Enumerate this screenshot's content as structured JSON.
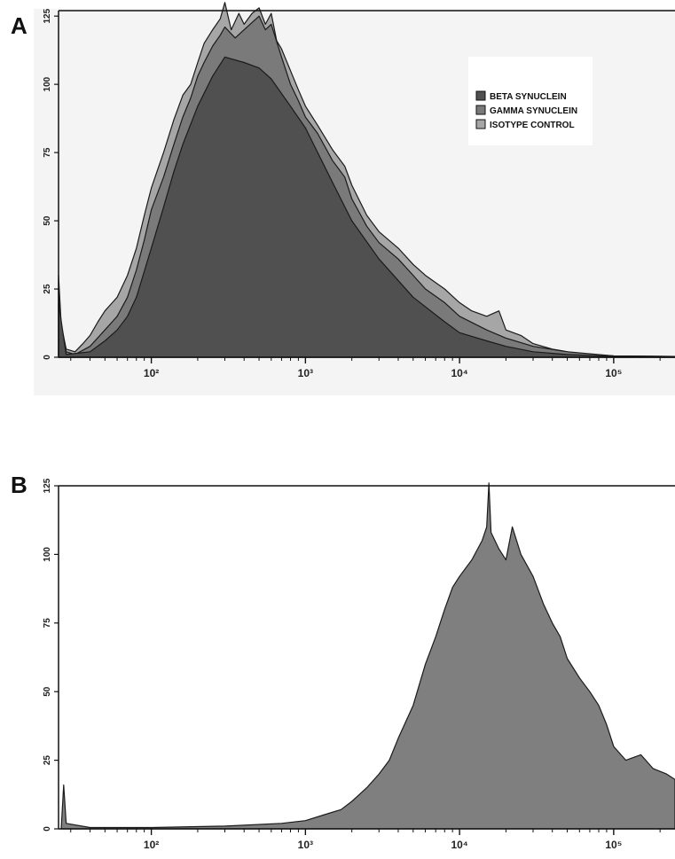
{
  "chart_data": [
    {
      "panel_label": "A",
      "type": "area",
      "x_scale": "log",
      "xlim": [
        25,
        250000
      ],
      "ylim": [
        0,
        127
      ],
      "y_ticks": [
        0,
        25,
        50,
        75,
        100,
        125
      ],
      "x_tick_labels": [
        {
          "value": 100,
          "label": "10²"
        },
        {
          "value": 1000,
          "label": "10³"
        },
        {
          "value": 10000,
          "label": "10⁴"
        },
        {
          "value": 100000,
          "label": "10⁵"
        }
      ],
      "legend": {
        "position": "top-right"
      },
      "series": [
        {
          "name": "ISOTYPE CONTROL",
          "color": "#a6a6a6",
          "points": [
            [
              25,
              30
            ],
            [
              26,
              12
            ],
            [
              28,
              3
            ],
            [
              32,
              2
            ],
            [
              36,
              5
            ],
            [
              40,
              8
            ],
            [
              45,
              13
            ],
            [
              50,
              17
            ],
            [
              60,
              22
            ],
            [
              70,
              30
            ],
            [
              80,
              40
            ],
            [
              90,
              52
            ],
            [
              100,
              62
            ],
            [
              120,
              75
            ],
            [
              140,
              87
            ],
            [
              160,
              96
            ],
            [
              180,
              100
            ],
            [
              200,
              108
            ],
            [
              220,
              115
            ],
            [
              250,
              120
            ],
            [
              280,
              124
            ],
            [
              300,
              130
            ],
            [
              330,
              120
            ],
            [
              370,
              126
            ],
            [
              400,
              122
            ],
            [
              450,
              126
            ],
            [
              500,
              128
            ],
            [
              550,
              122
            ],
            [
              600,
              126
            ],
            [
              650,
              116
            ],
            [
              700,
              113
            ],
            [
              800,
              105
            ],
            [
              900,
              98
            ],
            [
              1000,
              92
            ],
            [
              1200,
              85
            ],
            [
              1500,
              76
            ],
            [
              1800,
              70
            ],
            [
              2000,
              63
            ],
            [
              2500,
              52
            ],
            [
              3000,
              46
            ],
            [
              4000,
              40
            ],
            [
              5000,
              34
            ],
            [
              6000,
              30
            ],
            [
              8000,
              25
            ],
            [
              10000,
              20
            ],
            [
              12000,
              17
            ],
            [
              15000,
              15
            ],
            [
              18000,
              17
            ],
            [
              20000,
              10
            ],
            [
              25000,
              8
            ],
            [
              30000,
              5
            ],
            [
              40000,
              3
            ],
            [
              50000,
              2
            ],
            [
              70000,
              1
            ],
            [
              100000,
              0.5
            ],
            [
              250000,
              0.3
            ]
          ]
        },
        {
          "name": "GAMMA SYNUCLEIN",
          "color": "#7a7a7a",
          "points": [
            [
              25,
              25
            ],
            [
              26,
              10
            ],
            [
              28,
              2
            ],
            [
              32,
              1
            ],
            [
              40,
              4
            ],
            [
              50,
              10
            ],
            [
              60,
              15
            ],
            [
              70,
              22
            ],
            [
              80,
              32
            ],
            [
              90,
              43
            ],
            [
              100,
              54
            ],
            [
              120,
              66
            ],
            [
              140,
              78
            ],
            [
              160,
              88
            ],
            [
              180,
              95
            ],
            [
              200,
              103
            ],
            [
              220,
              108
            ],
            [
              250,
              114
            ],
            [
              280,
              118
            ],
            [
              300,
              121
            ],
            [
              350,
              117
            ],
            [
              400,
              120
            ],
            [
              500,
              125
            ],
            [
              550,
              120
            ],
            [
              600,
              122
            ],
            [
              700,
              110
            ],
            [
              800,
              100
            ],
            [
              900,
              94
            ],
            [
              1000,
              88
            ],
            [
              1200,
              82
            ],
            [
              1500,
              72
            ],
            [
              1800,
              66
            ],
            [
              2000,
              58
            ],
            [
              2500,
              48
            ],
            [
              3000,
              42
            ],
            [
              4000,
              36
            ],
            [
              5000,
              30
            ],
            [
              6000,
              25
            ],
            [
              8000,
              20
            ],
            [
              10000,
              15
            ],
            [
              15000,
              10
            ],
            [
              20000,
              7
            ],
            [
              30000,
              4
            ],
            [
              50000,
              2
            ],
            [
              100000,
              0.5
            ],
            [
              250000,
              0.3
            ]
          ]
        },
        {
          "name": "BETA SYNUCLEIN",
          "color": "#505050",
          "points": [
            [
              25,
              20
            ],
            [
              28,
              1
            ],
            [
              40,
              2
            ],
            [
              50,
              6
            ],
            [
              60,
              10
            ],
            [
              70,
              15
            ],
            [
              80,
              22
            ],
            [
              100,
              40
            ],
            [
              120,
              55
            ],
            [
              140,
              68
            ],
            [
              160,
              78
            ],
            [
              200,
              92
            ],
            [
              250,
              103
            ],
            [
              300,
              110
            ],
            [
              400,
              108
            ],
            [
              500,
              106
            ],
            [
              600,
              102
            ],
            [
              800,
              92
            ],
            [
              1000,
              84
            ],
            [
              1500,
              64
            ],
            [
              2000,
              50
            ],
            [
              3000,
              36
            ],
            [
              5000,
              22
            ],
            [
              8000,
              13
            ],
            [
              10000,
              9
            ],
            [
              15000,
              6
            ],
            [
              20000,
              4
            ],
            [
              30000,
              2
            ],
            [
              50000,
              1
            ],
            [
              100000,
              0.3
            ],
            [
              250000,
              0.2
            ]
          ]
        }
      ]
    },
    {
      "panel_label": "B",
      "type": "area",
      "x_scale": "log",
      "xlim": [
        25,
        250000
      ],
      "ylim": [
        0,
        125
      ],
      "y_ticks": [
        0,
        25,
        50,
        75,
        100,
        125
      ],
      "x_tick_labels": [
        {
          "value": 100,
          "label": "10²"
        },
        {
          "value": 1000,
          "label": "10³"
        },
        {
          "value": 10000,
          "label": "10⁴"
        },
        {
          "value": 100000,
          "label": "10⁵"
        }
      ],
      "series": [
        {
          "color": "#7f7f7f",
          "points": [
            [
              26,
              0
            ],
            [
              27,
              16
            ],
            [
              28,
              2
            ],
            [
              40,
              0.5
            ],
            [
              100,
              0.5
            ],
            [
              300,
              1
            ],
            [
              700,
              2
            ],
            [
              1000,
              3
            ],
            [
              1300,
              5
            ],
            [
              1700,
              7
            ],
            [
              2000,
              10
            ],
            [
              2500,
              15
            ],
            [
              3000,
              20
            ],
            [
              3500,
              25
            ],
            [
              4000,
              33
            ],
            [
              5000,
              45
            ],
            [
              6000,
              60
            ],
            [
              7000,
              70
            ],
            [
              8000,
              80
            ],
            [
              9000,
              88
            ],
            [
              10000,
              92
            ],
            [
              12000,
              98
            ],
            [
              14000,
              105
            ],
            [
              15000,
              110
            ],
            [
              15500,
              126
            ],
            [
              16000,
              108
            ],
            [
              18000,
              102
            ],
            [
              20000,
              98
            ],
            [
              22000,
              110
            ],
            [
              25000,
              100
            ],
            [
              30000,
              92
            ],
            [
              35000,
              82
            ],
            [
              40000,
              75
            ],
            [
              45000,
              70
            ],
            [
              50000,
              62
            ],
            [
              60000,
              55
            ],
            [
              70000,
              50
            ],
            [
              80000,
              45
            ],
            [
              90000,
              38
            ],
            [
              100000,
              30
            ],
            [
              120000,
              25
            ],
            [
              150000,
              27
            ],
            [
              180000,
              22
            ],
            [
              220000,
              20
            ],
            [
              250000,
              18
            ]
          ]
        }
      ]
    }
  ]
}
